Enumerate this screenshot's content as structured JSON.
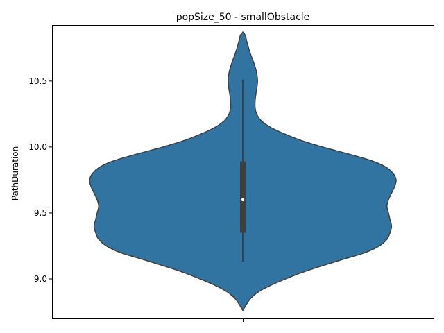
{
  "chart_data": {
    "type": "violin",
    "title": "popSize_50 - smallObstacle",
    "xlabel": "",
    "ylabel": "PathDuration",
    "ylim": [
      8.7,
      10.92
    ],
    "yticks": [
      9.0,
      9.5,
      10.0,
      10.5
    ],
    "ytick_labels": [
      "9.0",
      "9.5",
      "10.0",
      "10.5"
    ],
    "categories": [
      ""
    ],
    "colors": {
      "fill": "#3274a1",
      "edge": "#3f3f3f",
      "box": "#3f3f3f",
      "median": "#ffffff",
      "axis": "#000000"
    },
    "violin": {
      "y_min": 8.76,
      "y_max": 10.87,
      "density_profile": [
        [
          8.76,
          0.0
        ],
        [
          8.8,
          0.02
        ],
        [
          8.85,
          0.05
        ],
        [
          8.9,
          0.1
        ],
        [
          8.95,
          0.18
        ],
        [
          9.0,
          0.28
        ],
        [
          9.05,
          0.39
        ],
        [
          9.1,
          0.52
        ],
        [
          9.15,
          0.66
        ],
        [
          9.2,
          0.8
        ],
        [
          9.25,
          0.89
        ],
        [
          9.3,
          0.94
        ],
        [
          9.35,
          0.96
        ],
        [
          9.4,
          0.97
        ],
        [
          9.45,
          0.96
        ],
        [
          9.5,
          0.95
        ],
        [
          9.55,
          0.94
        ],
        [
          9.6,
          0.95
        ],
        [
          9.65,
          0.97
        ],
        [
          9.7,
          0.99
        ],
        [
          9.75,
          1.0
        ],
        [
          9.8,
          0.98
        ],
        [
          9.85,
          0.93
        ],
        [
          9.9,
          0.83
        ],
        [
          9.95,
          0.68
        ],
        [
          10.0,
          0.52
        ],
        [
          10.05,
          0.38
        ],
        [
          10.1,
          0.27
        ],
        [
          10.15,
          0.18
        ],
        [
          10.2,
          0.12
        ],
        [
          10.25,
          0.09
        ],
        [
          10.3,
          0.08
        ],
        [
          10.35,
          0.08
        ],
        [
          10.4,
          0.085
        ],
        [
          10.45,
          0.092
        ],
        [
          10.5,
          0.096
        ],
        [
          10.55,
          0.092
        ],
        [
          10.6,
          0.082
        ],
        [
          10.65,
          0.068
        ],
        [
          10.7,
          0.052
        ],
        [
          10.75,
          0.038
        ],
        [
          10.8,
          0.026
        ],
        [
          10.85,
          0.015
        ],
        [
          10.87,
          0.0
        ]
      ],
      "half_width_ratio": 1.0
    },
    "box": {
      "whisker_low": 9.13,
      "q1": 9.35,
      "median": 9.6,
      "q3": 9.89,
      "whisker_high": 10.51
    }
  }
}
